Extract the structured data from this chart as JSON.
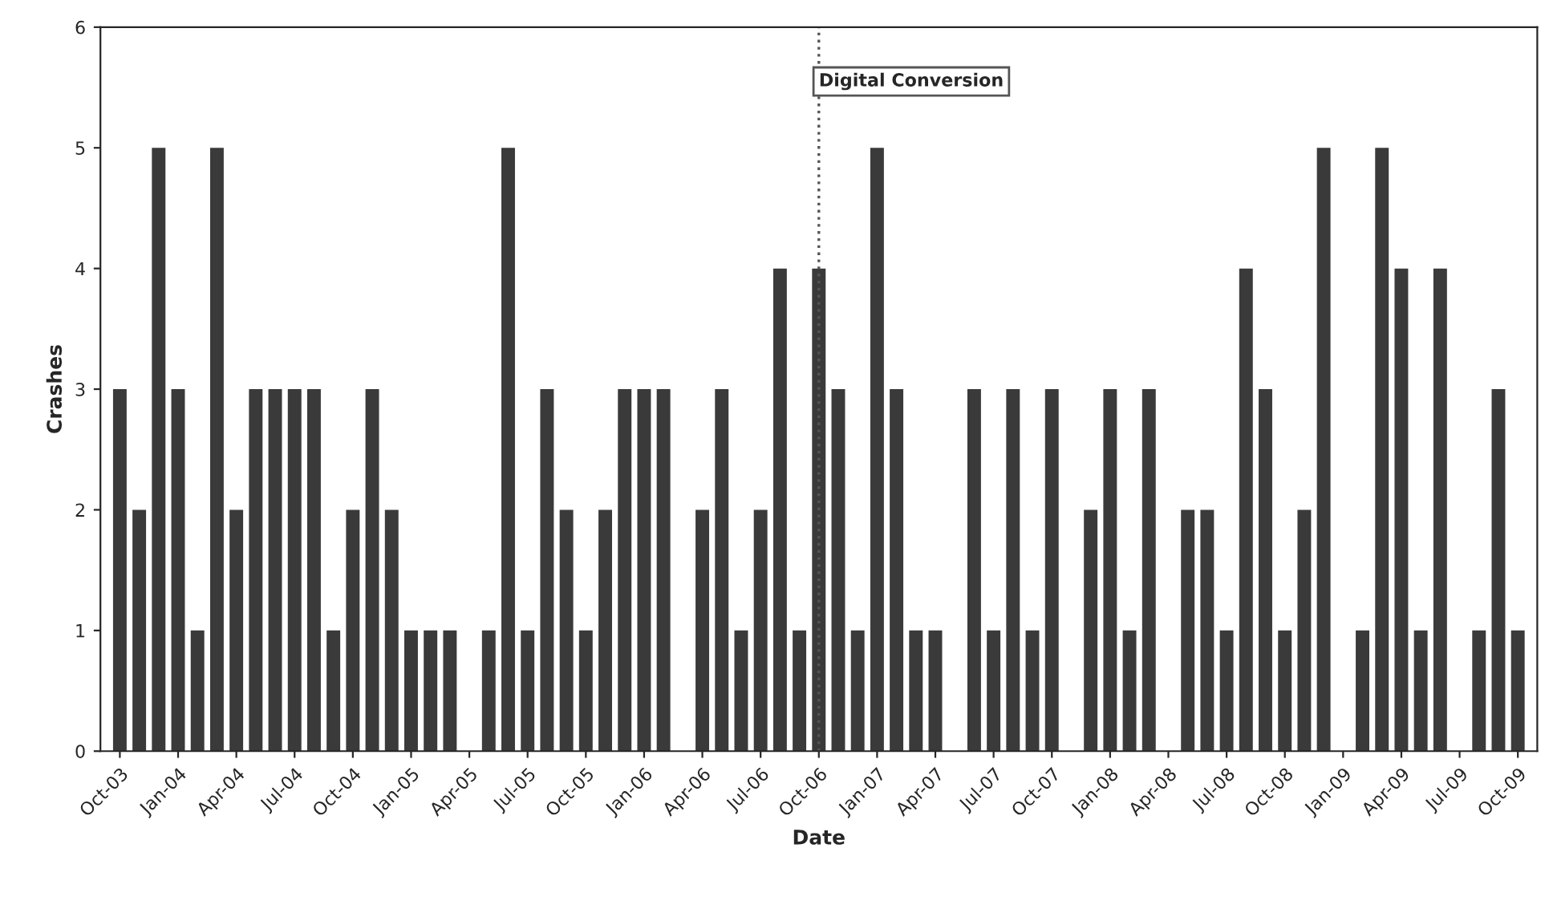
{
  "chart_data": {
    "type": "bar",
    "xlabel": "Date",
    "ylabel": "Crashes",
    "x": [
      "2003-10",
      "2003-11",
      "2003-12",
      "2004-01",
      "2004-02",
      "2004-03",
      "2004-04",
      "2004-05",
      "2004-06",
      "2004-07",
      "2004-08",
      "2004-09",
      "2004-10",
      "2004-11",
      "2004-12",
      "2005-01",
      "2005-02",
      "2005-03",
      "2005-04",
      "2005-05",
      "2005-06",
      "2005-07",
      "2005-08",
      "2005-09",
      "2005-10",
      "2005-11",
      "2005-12",
      "2006-01",
      "2006-02",
      "2006-03",
      "2006-04",
      "2006-05",
      "2006-06",
      "2006-07",
      "2006-08",
      "2006-09",
      "2006-10",
      "2006-11",
      "2006-12",
      "2007-01",
      "2007-02",
      "2007-03",
      "2007-04",
      "2007-05",
      "2007-06",
      "2007-07",
      "2007-08",
      "2007-09",
      "2007-10",
      "2007-11",
      "2007-12",
      "2008-01",
      "2008-02",
      "2008-03",
      "2008-04",
      "2008-05",
      "2008-06",
      "2008-07",
      "2008-08",
      "2008-09",
      "2008-10",
      "2008-11",
      "2008-12",
      "2009-01",
      "2009-02",
      "2009-03",
      "2009-04",
      "2009-05",
      "2009-06",
      "2009-07",
      "2009-08",
      "2009-09",
      "2009-10"
    ],
    "values": [
      3,
      2,
      5,
      3,
      1,
      5,
      2,
      3,
      3,
      3,
      3,
      1,
      2,
      3,
      2,
      1,
      1,
      1,
      0,
      1,
      5,
      1,
      3,
      2,
      1,
      2,
      3,
      3,
      3,
      0,
      2,
      3,
      1,
      2,
      4,
      1,
      4,
      3,
      1,
      5,
      3,
      1,
      1,
      0,
      3,
      1,
      3,
      1,
      3,
      0,
      2,
      3,
      1,
      3,
      0,
      2,
      2,
      1,
      4,
      3,
      1,
      2,
      5,
      0,
      1,
      5,
      4,
      1,
      4,
      0,
      1,
      3,
      1
    ],
    "color": "#3a3a3a",
    "xlim": [
      "2003-09",
      "2009-11"
    ],
    "xticks": [
      {
        "value": "2003-10",
        "label": "Oct-03"
      },
      {
        "value": "2004-01",
        "label": "Jan-04"
      },
      {
        "value": "2004-04",
        "label": "Apr-04"
      },
      {
        "value": "2004-07",
        "label": "Jul-04"
      },
      {
        "value": "2004-10",
        "label": "Oct-04"
      },
      {
        "value": "2005-01",
        "label": "Jan-05"
      },
      {
        "value": "2005-04",
        "label": "Apr-05"
      },
      {
        "value": "2005-07",
        "label": "Jul-05"
      },
      {
        "value": "2005-10",
        "label": "Oct-05"
      },
      {
        "value": "2006-01",
        "label": "Jan-06"
      },
      {
        "value": "2006-04",
        "label": "Apr-06"
      },
      {
        "value": "2006-07",
        "label": "Jul-06"
      },
      {
        "value": "2006-10",
        "label": "Oct-06"
      },
      {
        "value": "2007-01",
        "label": "Jan-07"
      },
      {
        "value": "2007-04",
        "label": "Apr-07"
      },
      {
        "value": "2007-07",
        "label": "Jul-07"
      },
      {
        "value": "2007-10",
        "label": "Oct-07"
      },
      {
        "value": "2008-01",
        "label": "Jan-08"
      },
      {
        "value": "2008-04",
        "label": "Apr-08"
      },
      {
        "value": "2008-07",
        "label": "Jul-08"
      },
      {
        "value": "2008-10",
        "label": "Oct-08"
      },
      {
        "value": "2009-01",
        "label": "Jan-09"
      },
      {
        "value": "2009-04",
        "label": "Apr-09"
      },
      {
        "value": "2009-07",
        "label": "Jul-09"
      },
      {
        "value": "2009-10",
        "label": "Oct-09"
      }
    ],
    "ylim": [
      0,
      6
    ],
    "yticks": [
      0,
      1,
      2,
      3,
      4,
      5,
      6
    ],
    "ref_lines": [
      {
        "axis": "x",
        "value": "2006-10",
        "label": "Digital Conversion",
        "color": "#555555",
        "line_style": "dotted"
      }
    ],
    "grid": false,
    "legend": false
  }
}
